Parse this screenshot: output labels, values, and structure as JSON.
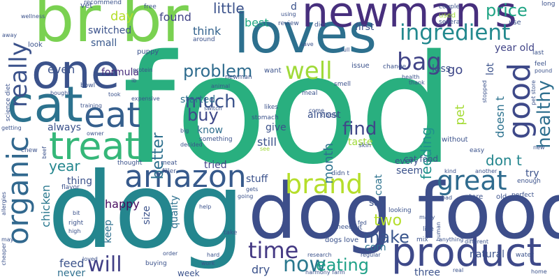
{
  "words": [
    {
      "text": "food",
      "color": "#29af7f"
    },
    {
      "text": "dog",
      "color": "#24868e"
    },
    {
      "text": "dog food",
      "color": "#3d4e8a"
    },
    {
      "text": "loves",
      "color": "#2d708e"
    },
    {
      "text": "one",
      "color": "#3b528b"
    },
    {
      "text": "br br",
      "color": "#7ad151"
    },
    {
      "text": "newman s",
      "color": "#472f7d"
    },
    {
      "text": "cat",
      "color": "#2c728e"
    },
    {
      "text": "eat",
      "color": "#355f8d"
    },
    {
      "text": "treat",
      "color": "#35b779"
    },
    {
      "text": "amazon",
      "color": "#375a8c"
    },
    {
      "text": "brand",
      "color": "#b5de2b"
    },
    {
      "text": "product",
      "color": "#3e4989"
    },
    {
      "text": "great",
      "color": "#2f6b8e"
    },
    {
      "text": "good",
      "color": "#3e4989"
    },
    {
      "text": "ingredient",
      "color": "#23898e"
    },
    {
      "text": "organic",
      "color": "#31688e"
    },
    {
      "text": "really",
      "color": "#3b528b"
    },
    {
      "text": "bag",
      "color": "#414487"
    },
    {
      "text": "well",
      "color": "#a0da39"
    },
    {
      "text": "healthy",
      "color": "#2e6f8e"
    },
    {
      "text": "price",
      "color": "#21a585"
    },
    {
      "text": "time",
      "color": "#443983"
    },
    {
      "text": "now",
      "color": "#2a788e"
    },
    {
      "text": "will",
      "color": "#424086"
    },
    {
      "text": "problem",
      "color": "#2f6c8e"
    },
    {
      "text": "make",
      "color": "#39558c"
    },
    {
      "text": "eating",
      "color": "#1fa188"
    },
    {
      "text": "much",
      "color": "#3b528b"
    },
    {
      "text": "buy",
      "color": "#3f4889"
    },
    {
      "text": "find",
      "color": "#3f4788"
    },
    {
      "text": "two",
      "color": "#b5de2b"
    },
    {
      "text": "year",
      "color": "#24868e"
    },
    {
      "text": "month",
      "color": "#2c728e"
    },
    {
      "text": "feeding",
      "color": "#20928c"
    },
    {
      "text": "pet",
      "color": "#a5db36"
    },
    {
      "text": "little",
      "color": "#3b528b"
    },
    {
      "text": "found",
      "color": "#414487"
    },
    {
      "text": "even",
      "color": "#3b528b"
    },
    {
      "text": "formula",
      "color": "#472d7b"
    },
    {
      "text": "switched",
      "color": "#3b528b"
    },
    {
      "text": "small",
      "color": "#38588c"
    },
    {
      "text": "think",
      "color": "#33638d"
    },
    {
      "text": "best",
      "color": "#22a884"
    },
    {
      "text": "first",
      "color": "#3b528b"
    },
    {
      "text": "year old",
      "color": "#414487"
    },
    {
      "text": "less",
      "color": "#3b528b"
    },
    {
      "text": "go",
      "color": "#3f4889"
    },
    {
      "text": "lot",
      "color": "#3b528b"
    },
    {
      "text": "day",
      "color": "#b5de2b"
    },
    {
      "text": "started",
      "color": "#2d708e"
    },
    {
      "text": "better",
      "color": "#2d708e"
    },
    {
      "text": "know",
      "color": "#2e6e8e"
    },
    {
      "text": "still",
      "color": "#3b528b"
    },
    {
      "text": "give",
      "color": "#3b528b"
    },
    {
      "text": "almost",
      "color": "#3b528b"
    },
    {
      "text": "taste",
      "color": "#a0da39"
    },
    {
      "text": "don t",
      "color": "#24868e"
    },
    {
      "text": "doesn t",
      "color": "#2c728e"
    },
    {
      "text": "chicken",
      "color": "#2a788e"
    },
    {
      "text": "always",
      "color": "#3b528b"
    },
    {
      "text": "happy",
      "color": "#460a5d"
    },
    {
      "text": "thing",
      "color": "#3b528b"
    },
    {
      "text": "tried",
      "color": "#414487"
    },
    {
      "text": "stuff",
      "color": "#3b528b"
    },
    {
      "text": "coat",
      "color": "#2c728e"
    },
    {
      "text": "every",
      "color": "#3b528b"
    },
    {
      "text": "seem",
      "color": "#3b528b"
    },
    {
      "text": "try",
      "color": "#3b528b"
    },
    {
      "text": "say",
      "color": "#3b528b"
    },
    {
      "text": "quality",
      "color": "#2d708e"
    },
    {
      "text": "size",
      "color": "#3b528b"
    },
    {
      "text": "keep",
      "color": "#2d708e"
    },
    {
      "text": "feed",
      "color": "#3b528b"
    },
    {
      "text": "corn",
      "color": "#2c728e"
    },
    {
      "text": "week",
      "color": "#3b528b"
    },
    {
      "text": "dry",
      "color": "#3b528b"
    },
    {
      "text": "never",
      "color": "#2e6f8e"
    },
    {
      "text": "three",
      "color": "#3b528b"
    },
    {
      "text": "natural",
      "color": "#3b528b"
    },
    {
      "text": "cat food",
      "color": "#3b528b"
    },
    {
      "text": "vet",
      "color": "#3b528b"
    },
    {
      "text": "recommend",
      "color": "#3b528b"
    },
    {
      "text": "free",
      "color": "#3b528b"
    },
    {
      "text": "d",
      "color": "#3b528b"
    },
    {
      "text": "using",
      "color": "#3b528b"
    },
    {
      "text": "couple",
      "color": "#3b528b"
    },
    {
      "text": "long",
      "color": "#3b528b"
    },
    {
      "text": "look",
      "color": "#3b528b"
    },
    {
      "text": "wellness",
      "color": "#3b528b"
    },
    {
      "text": "review",
      "color": "#3b528b"
    },
    {
      "text": "diet",
      "color": "#3b528b"
    },
    {
      "text": "used",
      "color": "#a0da39"
    },
    {
      "text": "several",
      "color": "#3b528b"
    },
    {
      "text": "use",
      "color": "#3b528b"
    },
    {
      "text": "puppy",
      "color": "#3b528b"
    },
    {
      "text": "around",
      "color": "#3b528b"
    },
    {
      "text": "save",
      "color": "#3b528b"
    },
    {
      "text": "full",
      "color": "#3b528b"
    },
    {
      "text": "change",
      "color": "#3b528b"
    },
    {
      "text": "last",
      "color": "#3b528b"
    },
    {
      "text": "feel",
      "color": "#3b528b"
    },
    {
      "text": "away",
      "color": "#3b528b"
    },
    {
      "text": "protein",
      "color": "#3b528b"
    },
    {
      "text": "want",
      "color": "#3b528b"
    },
    {
      "text": "issue",
      "color": "#3b528b"
    },
    {
      "text": "health",
      "color": "#3b528b"
    },
    {
      "text": "thank",
      "color": "#3b528b"
    },
    {
      "text": "pound",
      "color": "#3b528b"
    },
    {
      "text": "science diet",
      "color": "#3b528b"
    },
    {
      "text": "bowl",
      "color": "#3b528b"
    },
    {
      "text": "lb",
      "color": "#3b528b"
    },
    {
      "text": "newman",
      "color": "#3b528b"
    },
    {
      "text": "animal",
      "color": "#3b528b"
    },
    {
      "text": "smell",
      "color": "#3b528b"
    },
    {
      "text": "meal",
      "color": "#3b528b"
    },
    {
      "text": "stopped",
      "color": "#3b528b"
    },
    {
      "text": "pet store",
      "color": "#3b528b"
    },
    {
      "text": "bought",
      "color": "#3b528b"
    },
    {
      "text": "took",
      "color": "#3b528b"
    },
    {
      "text": "expensive",
      "color": "#3b528b"
    },
    {
      "text": "training",
      "color": "#3b528b"
    },
    {
      "text": "switch",
      "color": "#3b528b"
    },
    {
      "text": "likes",
      "color": "#3b528b"
    },
    {
      "text": "come",
      "color": "#3b528b"
    },
    {
      "text": "kibble",
      "color": "#3b528b"
    },
    {
      "text": "stomach",
      "color": "#3b528b"
    },
    {
      "text": "getting",
      "color": "#3b528b"
    },
    {
      "text": "owner",
      "color": "#3b528b"
    },
    {
      "text": "something",
      "color": "#3b528b"
    },
    {
      "text": "big",
      "color": "#3b528b"
    },
    {
      "text": "decided",
      "color": "#3b528b"
    },
    {
      "text": "see",
      "color": "#a0da39"
    },
    {
      "text": "skin",
      "color": "#3b528b"
    },
    {
      "text": "without",
      "color": "#3b528b"
    },
    {
      "text": "easy",
      "color": "#3b528b"
    },
    {
      "text": "new",
      "color": "#3b528b"
    },
    {
      "text": "chew",
      "color": "#3b528b"
    },
    {
      "text": "beef",
      "color": "#3b528b"
    },
    {
      "text": "thought",
      "color": "#3b528b"
    },
    {
      "text": "meat",
      "color": "#3b528b"
    },
    {
      "text": "filler",
      "color": "#3b528b"
    },
    {
      "text": "didn t",
      "color": "#3b528b"
    },
    {
      "text": "kind",
      "color": "#3b528b"
    },
    {
      "text": "another",
      "color": "#3b528b"
    },
    {
      "text": "enough",
      "color": "#3b528b"
    },
    {
      "text": "flavor",
      "color": "#3b528b"
    },
    {
      "text": "gets",
      "color": "#3b528b"
    },
    {
      "text": "store",
      "color": "#3b528b"
    },
    {
      "text": "old",
      "color": "#3b528b"
    },
    {
      "text": "perfect",
      "color": "#3b528b"
    },
    {
      "text": "bad",
      "color": "#3b528b"
    },
    {
      "text": "allergies",
      "color": "#3b528b"
    },
    {
      "text": "going",
      "color": "#3b528b"
    },
    {
      "text": "help",
      "color": "#3b528b"
    },
    {
      "text": "bit",
      "color": "#3b528b"
    },
    {
      "text": "right",
      "color": "#3b528b"
    },
    {
      "text": "high",
      "color": "#3b528b"
    },
    {
      "text": "take",
      "color": "#3b528b"
    },
    {
      "text": "put",
      "color": "#3b528b"
    },
    {
      "text": "looking",
      "color": "#3b528b"
    },
    {
      "text": "many",
      "color": "#3b528b"
    },
    {
      "text": "fed",
      "color": "#3b528b"
    },
    {
      "text": "need",
      "color": "#3b528b"
    },
    {
      "text": "live",
      "color": "#3b528b"
    },
    {
      "text": "human",
      "color": "#3b528b"
    },
    {
      "text": "may",
      "color": "#3b528b"
    },
    {
      "text": "cheaper",
      "color": "#3b528b"
    },
    {
      "text": "order",
      "color": "#3b528b"
    },
    {
      "text": "dogs love",
      "color": "#3b528b"
    },
    {
      "text": "mix",
      "color": "#3b528b"
    },
    {
      "text": "anything",
      "color": "#3b528b"
    },
    {
      "text": "different",
      "color": "#3b528b"
    },
    {
      "text": "hard",
      "color": "#3b528b"
    },
    {
      "text": "buying",
      "color": "#3b528b"
    },
    {
      "text": "research",
      "color": "#3b528b"
    },
    {
      "text": "regular",
      "color": "#3b528b"
    },
    {
      "text": "water",
      "color": "#3b528b"
    },
    {
      "text": "loved",
      "color": "#3b528b"
    },
    {
      "text": "work",
      "color": "#3b528b"
    },
    {
      "text": "harmony farm",
      "color": "#3b528b"
    },
    {
      "text": "real",
      "color": "#3b528b"
    },
    {
      "text": "home",
      "color": "#3b528b"
    }
  ]
}
